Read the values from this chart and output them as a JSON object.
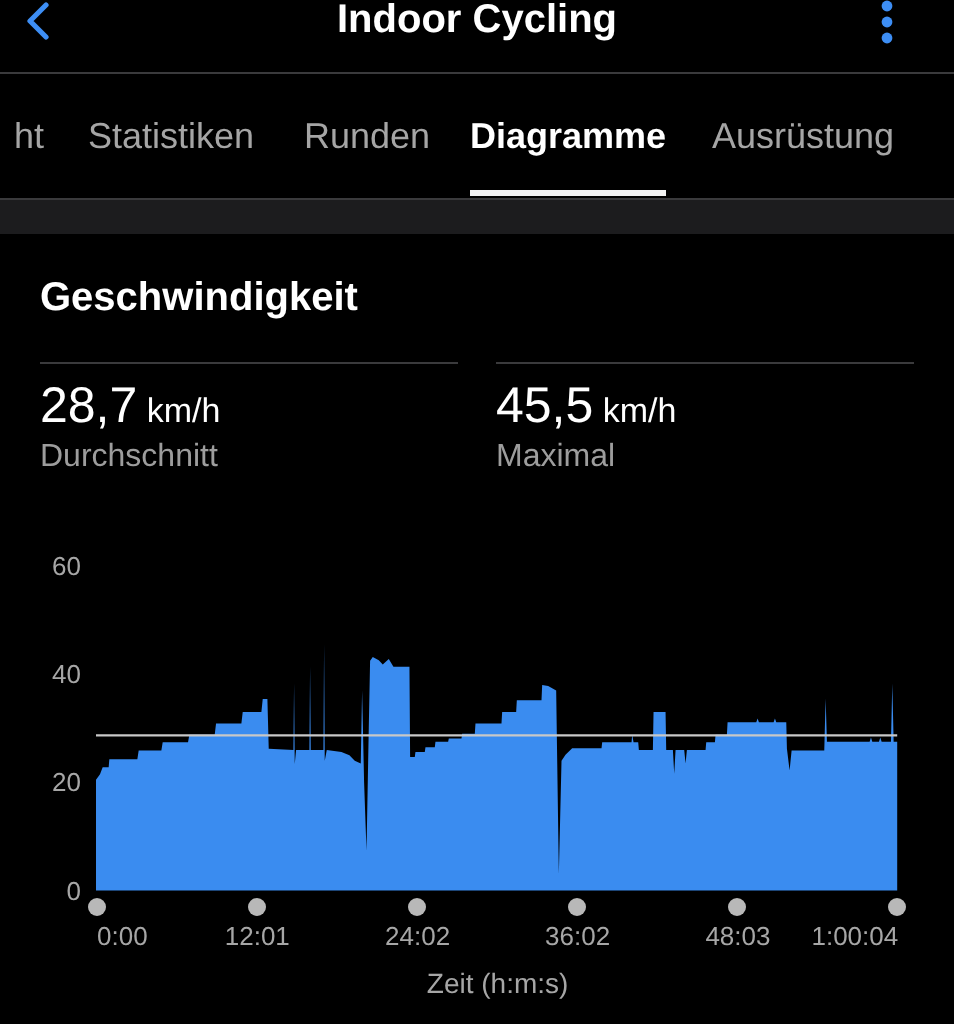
{
  "chart_data": {
    "type": "area",
    "title": "Indoor Cycling",
    "subtitle": "Geschwindigkeit",
    "xlabel": "Zeit (h:m:s)",
    "annotations": [
      "ht",
      "Statistiken",
      "Runden",
      "Diagramme",
      "Ausrüstung",
      "28,7 km/h",
      "Durchschnitt",
      "45,5 km/h",
      "Maximal"
    ],
    "x": [
      0,
      0.3,
      0.5,
      0.95,
      1.0,
      3.1,
      3.2,
      4.9,
      5.0,
      6.9,
      7.0,
      8.9,
      9.0,
      10.9,
      11.0,
      12.4,
      12.5,
      12.85,
      12.95,
      14.8,
      14.85,
      14.9,
      15.0,
      16.0,
      16.05,
      16.1,
      17.05,
      17.1,
      17.15,
      17.3,
      18.4,
      19.0,
      19.4,
      19.85,
      19.95,
      20.1,
      20.28,
      20.45,
      20.55,
      20.75,
      21.2,
      21.5,
      21.95,
      22.3,
      23.5,
      23.55,
      23.9,
      23.95,
      24.65,
      24.7,
      25.4,
      25.45,
      26.4,
      26.45,
      27.4,
      27.45,
      28.4,
      28.45,
      30.4,
      30.45,
      31.5,
      31.55,
      33.4,
      33.45,
      33.9,
      34.2,
      34.5,
      34.7,
      34.9,
      35.2,
      35.7,
      37.9,
      37.95,
      40.15,
      40.2,
      40.3,
      40.65,
      40.7,
      41.75,
      41.8,
      42.7,
      42.75,
      43.25,
      43.35,
      43.45,
      44.1,
      44.2,
      44.3,
      45.7,
      45.75,
      46.4,
      46.45,
      47.3,
      47.35,
      49.5,
      49.6,
      49.7,
      50.8,
      50.9,
      51.0,
      51.75,
      51.8,
      52.0,
      52.15,
      54.6,
      54.7,
      54.8,
      58.0,
      58.1,
      58.2,
      58.7,
      58.8,
      58.9,
      59.6,
      59.7,
      59.8,
      60.067
    ],
    "values": [
      20.5,
      21.5,
      22.8,
      22.8,
      24.3,
      24.3,
      25.9,
      25.9,
      27.4,
      27.4,
      28.8,
      28.8,
      30.9,
      30.9,
      33.0,
      33.0,
      35.4,
      35.4,
      26.2,
      26.0,
      38.3,
      23.4,
      26.0,
      26.0,
      41.4,
      26.0,
      26.0,
      45.5,
      24.0,
      26.0,
      25.6,
      25.0,
      24.0,
      23.5,
      37.0,
      20.0,
      7.4,
      30.0,
      42.5,
      43.2,
      42.6,
      41.8,
      42.8,
      41.4,
      41.4,
      24.7,
      24.7,
      25.6,
      25.6,
      26.5,
      26.5,
      27.5,
      27.5,
      28.1,
      28.1,
      29.0,
      29.0,
      30.9,
      30.9,
      33.0,
      33.0,
      35.2,
      35.2,
      38.0,
      37.8,
      37.4,
      37.0,
      3.1,
      24.0,
      25.1,
      26.3,
      26.3,
      27.4,
      27.4,
      28.8,
      27.4,
      27.4,
      26.0,
      26.0,
      33.0,
      33.0,
      26.0,
      26.0,
      21.6,
      26.0,
      26.0,
      23.5,
      26.0,
      26.0,
      27.4,
      27.4,
      28.8,
      28.8,
      31.1,
      31.1,
      31.8,
      31.1,
      31.1,
      31.8,
      31.1,
      31.1,
      26.2,
      22.2,
      25.9,
      25.9,
      35.5,
      27.5,
      27.5,
      28.3,
      27.5,
      27.5,
      28.3,
      27.5,
      27.5,
      38.3,
      27.5,
      27.5
    ],
    "color": "#3a8cf0",
    "xlim": [
      0,
      60.067
    ],
    "xticks": [
      {
        "value": 0,
        "label": "0:00"
      },
      {
        "value": 12.017,
        "label": "12:01"
      },
      {
        "value": 24.033,
        "label": "24:02"
      },
      {
        "value": 36.033,
        "label": "36:02"
      },
      {
        "value": 48.05,
        "label": "48:03"
      },
      {
        "value": 60.067,
        "label": "1:00:04"
      }
    ],
    "ylim": [
      0,
      60
    ],
    "yticks": [
      0,
      20,
      40,
      60
    ],
    "ref_lines": [
      {
        "axis": "y",
        "value": 28.7,
        "color": "#c8c8c8"
      }
    ]
  }
}
